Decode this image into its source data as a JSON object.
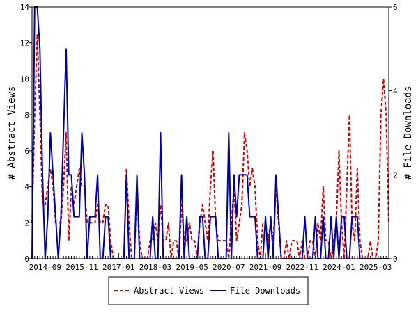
{
  "chart_data": {
    "type": "line",
    "ylabel_left": "# Abstract Views",
    "ylabel_right": "# File Downloads",
    "ylim_left": [
      0,
      14
    ],
    "ylim_right": [
      0,
      6
    ],
    "yticks_left": [
      "0",
      "2",
      "4",
      "6",
      "8",
      "10",
      "12",
      "14"
    ],
    "yticks_right": [
      "0",
      "2",
      "4",
      "6"
    ],
    "x_range": [
      "2014-04",
      "2025-08"
    ],
    "xticks": [
      "2014-09",
      "2015-11",
      "2017-01",
      "2018-03",
      "2019-05",
      "2020-07",
      "2021-09",
      "2022-11",
      "2024-01",
      "2025-03"
    ],
    "legend_position": "bottom-center",
    "series": [
      {
        "name": "Abstract Views",
        "axis": "left",
        "color": "#cc0000",
        "dash": "dashed",
        "points": [
          [
            "2014-04",
            2
          ],
          [
            "2014-05",
            8
          ],
          [
            "2014-06",
            12.5
          ],
          [
            "2014-07",
            8
          ],
          [
            "2014-08",
            3
          ],
          [
            "2014-09",
            3
          ],
          [
            "2014-10",
            4
          ],
          [
            "2014-11",
            5
          ],
          [
            "2014-12",
            4
          ],
          [
            "2015-01",
            2
          ],
          [
            "2015-02",
            2
          ],
          [
            "2015-03",
            2
          ],
          [
            "2015-04",
            4
          ],
          [
            "2015-05",
            7
          ],
          [
            "2015-06",
            1
          ],
          [
            "2015-07",
            4
          ],
          [
            "2015-08",
            3
          ],
          [
            "2015-09",
            4
          ],
          [
            "2015-10",
            5
          ],
          [
            "2015-11",
            4
          ],
          [
            "2015-12",
            4
          ],
          [
            "2016-01",
            2
          ],
          [
            "2016-02",
            2
          ],
          [
            "2016-03",
            2
          ],
          [
            "2016-04",
            2
          ],
          [
            "2016-05",
            3
          ],
          [
            "2016-06",
            2
          ],
          [
            "2016-07",
            2
          ],
          [
            "2016-08",
            3
          ],
          [
            "2016-09",
            3
          ],
          [
            "2016-10",
            1
          ],
          [
            "2016-11",
            0
          ],
          [
            "2016-12",
            0
          ],
          [
            "2017-01",
            0
          ],
          [
            "2017-02",
            0
          ],
          [
            "2017-03",
            0
          ],
          [
            "2017-04",
            5
          ],
          [
            "2017-05",
            2
          ],
          [
            "2017-06",
            0
          ],
          [
            "2017-07",
            0
          ],
          [
            "2017-08",
            4
          ],
          [
            "2017-09",
            1
          ],
          [
            "2017-10",
            0
          ],
          [
            "2017-11",
            0
          ],
          [
            "2017-12",
            0
          ],
          [
            "2018-01",
            1
          ],
          [
            "2018-02",
            1
          ],
          [
            "2018-03",
            2
          ],
          [
            "2018-04",
            1
          ],
          [
            "2018-05",
            3
          ],
          [
            "2018-06",
            1
          ],
          [
            "2018-07",
            1
          ],
          [
            "2018-08",
            2
          ],
          [
            "2018-09",
            0
          ],
          [
            "2018-10",
            1
          ],
          [
            "2018-11",
            1
          ],
          [
            "2018-12",
            0
          ],
          [
            "2019-01",
            3
          ],
          [
            "2019-02",
            1
          ],
          [
            "2019-03",
            1
          ],
          [
            "2019-04",
            2
          ],
          [
            "2019-05",
            1
          ],
          [
            "2019-06",
            1
          ],
          [
            "2019-07",
            0
          ],
          [
            "2019-08",
            2
          ],
          [
            "2019-09",
            3
          ],
          [
            "2019-10",
            2
          ],
          [
            "2019-11",
            1
          ],
          [
            "2019-12",
            4
          ],
          [
            "2020-01",
            6
          ],
          [
            "2020-02",
            2
          ],
          [
            "2020-03",
            1
          ],
          [
            "2020-04",
            1
          ],
          [
            "2020-05",
            1
          ],
          [
            "2020-06",
            1
          ],
          [
            "2020-07",
            0
          ],
          [
            "2020-08",
            2
          ],
          [
            "2020-09",
            4
          ],
          [
            "2020-10",
            1
          ],
          [
            "2020-11",
            2
          ],
          [
            "2020-12",
            3
          ],
          [
            "2021-01",
            7
          ],
          [
            "2021-02",
            6
          ],
          [
            "2021-03",
            4
          ],
          [
            "2021-04",
            5
          ],
          [
            "2021-05",
            4
          ],
          [
            "2021-06",
            1
          ],
          [
            "2021-07",
            0
          ],
          [
            "2021-08",
            2
          ],
          [
            "2021-09",
            2
          ],
          [
            "2021-10",
            1
          ],
          [
            "2021-11",
            2
          ],
          [
            "2021-12",
            1
          ],
          [
            "2022-01",
            4
          ],
          [
            "2022-02",
            2
          ],
          [
            "2022-03",
            0
          ],
          [
            "2022-04",
            0
          ],
          [
            "2022-05",
            1
          ],
          [
            "2022-06",
            0
          ],
          [
            "2022-07",
            1
          ],
          [
            "2022-08",
            1
          ],
          [
            "2022-09",
            1
          ],
          [
            "2022-10",
            0
          ],
          [
            "2022-11",
            1
          ],
          [
            "2022-12",
            0
          ],
          [
            "2023-01",
            0
          ],
          [
            "2023-02",
            1
          ],
          [
            "2023-03",
            1
          ],
          [
            "2023-04",
            0
          ],
          [
            "2023-05",
            2
          ],
          [
            "2023-06",
            1
          ],
          [
            "2023-07",
            4
          ],
          [
            "2023-08",
            1
          ],
          [
            "2023-09",
            1
          ],
          [
            "2023-10",
            0
          ],
          [
            "2023-11",
            1
          ],
          [
            "2023-12",
            2
          ],
          [
            "2024-01",
            6
          ],
          [
            "2024-02",
            2
          ],
          [
            "2024-03",
            0
          ],
          [
            "2024-04",
            4
          ],
          [
            "2024-05",
            8
          ],
          [
            "2024-06",
            2
          ],
          [
            "2024-07",
            1
          ],
          [
            "2024-08",
            5
          ],
          [
            "2024-09",
            1
          ],
          [
            "2024-10",
            0
          ],
          [
            "2024-11",
            0
          ],
          [
            "2024-12",
            0
          ],
          [
            "2025-01",
            1
          ],
          [
            "2025-02",
            0
          ],
          [
            "2025-03",
            0
          ],
          [
            "2025-04",
            1
          ],
          [
            "2025-05",
            8
          ],
          [
            "2025-06",
            10
          ],
          [
            "2025-07",
            8
          ],
          [
            "2025-08",
            2
          ]
        ]
      },
      {
        "name": "File Downloads",
        "axis": "right",
        "color": "#0000aa",
        "dash": "solid",
        "points": [
          [
            "2014-04",
            0
          ],
          [
            "2014-05",
            6
          ],
          [
            "2014-06",
            6
          ],
          [
            "2014-07",
            5
          ],
          [
            "2014-08",
            2
          ],
          [
            "2014-09",
            0
          ],
          [
            "2014-10",
            1
          ],
          [
            "2014-11",
            3
          ],
          [
            "2014-12",
            2
          ],
          [
            "2015-01",
            1
          ],
          [
            "2015-02",
            0
          ],
          [
            "2015-03",
            1
          ],
          [
            "2015-04",
            3
          ],
          [
            "2015-05",
            5
          ],
          [
            "2015-06",
            2
          ],
          [
            "2015-07",
            2
          ],
          [
            "2015-08",
            1
          ],
          [
            "2015-09",
            1
          ],
          [
            "2015-10",
            1
          ],
          [
            "2015-11",
            3
          ],
          [
            "2015-12",
            2
          ],
          [
            "2016-01",
            0
          ],
          [
            "2016-02",
            1
          ],
          [
            "2016-03",
            1
          ],
          [
            "2016-04",
            1
          ],
          [
            "2016-05",
            2
          ],
          [
            "2016-06",
            0
          ],
          [
            "2016-07",
            0
          ],
          [
            "2016-08",
            1
          ],
          [
            "2016-09",
            1
          ],
          [
            "2016-10",
            0
          ],
          [
            "2016-11",
            0
          ],
          [
            "2016-12",
            0
          ],
          [
            "2017-01",
            0
          ],
          [
            "2017-02",
            0
          ],
          [
            "2017-03",
            0
          ],
          [
            "2017-04",
            2
          ],
          [
            "2017-05",
            0
          ],
          [
            "2017-06",
            0
          ],
          [
            "2017-07",
            0
          ],
          [
            "2017-08",
            2
          ],
          [
            "2017-09",
            0
          ],
          [
            "2017-10",
            0
          ],
          [
            "2017-11",
            0
          ],
          [
            "2017-12",
            0
          ],
          [
            "2018-01",
            0
          ],
          [
            "2018-02",
            1
          ],
          [
            "2018-03",
            0
          ],
          [
            "2018-04",
            0
          ],
          [
            "2018-05",
            3
          ],
          [
            "2018-06",
            0
          ],
          [
            "2018-07",
            0
          ],
          [
            "2018-08",
            0
          ],
          [
            "2018-09",
            0
          ],
          [
            "2018-10",
            0
          ],
          [
            "2018-11",
            0
          ],
          [
            "2018-12",
            0
          ],
          [
            "2019-01",
            2
          ],
          [
            "2019-02",
            0
          ],
          [
            "2019-03",
            1
          ],
          [
            "2019-04",
            0
          ],
          [
            "2019-05",
            0
          ],
          [
            "2019-06",
            0
          ],
          [
            "2019-07",
            0
          ],
          [
            "2019-08",
            1
          ],
          [
            "2019-09",
            1
          ],
          [
            "2019-10",
            0
          ],
          [
            "2019-11",
            0
          ],
          [
            "2019-12",
            1
          ],
          [
            "2020-01",
            1
          ],
          [
            "2020-02",
            1
          ],
          [
            "2020-03",
            0
          ],
          [
            "2020-04",
            0
          ],
          [
            "2020-05",
            0
          ],
          [
            "2020-06",
            0
          ],
          [
            "2020-07",
            3
          ],
          [
            "2020-08",
            0
          ],
          [
            "2020-09",
            2
          ],
          [
            "2020-10",
            1
          ],
          [
            "2020-11",
            2
          ],
          [
            "2020-12",
            2
          ],
          [
            "2021-01",
            2
          ],
          [
            "2021-02",
            2
          ],
          [
            "2021-03",
            1
          ],
          [
            "2021-04",
            1
          ],
          [
            "2021-05",
            1
          ],
          [
            "2021-06",
            0
          ],
          [
            "2021-07",
            0
          ],
          [
            "2021-08",
            0
          ],
          [
            "2021-09",
            1
          ],
          [
            "2021-10",
            0
          ],
          [
            "2021-11",
            1
          ],
          [
            "2021-12",
            0
          ],
          [
            "2022-01",
            2
          ],
          [
            "2022-02",
            1
          ],
          [
            "2022-03",
            0
          ],
          [
            "2022-04",
            0
          ],
          [
            "2022-05",
            0
          ],
          [
            "2022-06",
            0
          ],
          [
            "2022-07",
            0
          ],
          [
            "2022-08",
            0
          ],
          [
            "2022-09",
            0
          ],
          [
            "2022-10",
            0
          ],
          [
            "2022-11",
            0
          ],
          [
            "2022-12",
            1
          ],
          [
            "2023-01",
            0
          ],
          [
            "2023-02",
            0
          ],
          [
            "2023-03",
            0
          ],
          [
            "2023-04",
            1
          ],
          [
            "2023-05",
            0
          ],
          [
            "2023-06",
            0
          ],
          [
            "2023-07",
            1
          ],
          [
            "2023-08",
            0
          ],
          [
            "2023-09",
            0
          ],
          [
            "2023-10",
            1
          ],
          [
            "2023-11",
            0
          ],
          [
            "2023-12",
            1
          ],
          [
            "2024-01",
            0
          ],
          [
            "2024-02",
            1
          ],
          [
            "2024-03",
            1
          ],
          [
            "2024-04",
            0
          ],
          [
            "2024-05",
            0
          ],
          [
            "2024-06",
            1
          ],
          [
            "2024-07",
            1
          ],
          [
            "2024-08",
            1
          ],
          [
            "2024-09",
            0
          ],
          [
            "2024-10",
            0
          ],
          [
            "2024-11",
            0
          ],
          [
            "2024-12",
            0
          ],
          [
            "2025-01",
            0
          ],
          [
            "2025-02",
            0
          ],
          [
            "2025-03",
            0
          ],
          [
            "2025-04",
            0
          ],
          [
            "2025-05",
            0
          ],
          [
            "2025-06",
            0
          ],
          [
            "2025-07",
            0
          ],
          [
            "2025-08",
            0
          ]
        ]
      }
    ]
  }
}
